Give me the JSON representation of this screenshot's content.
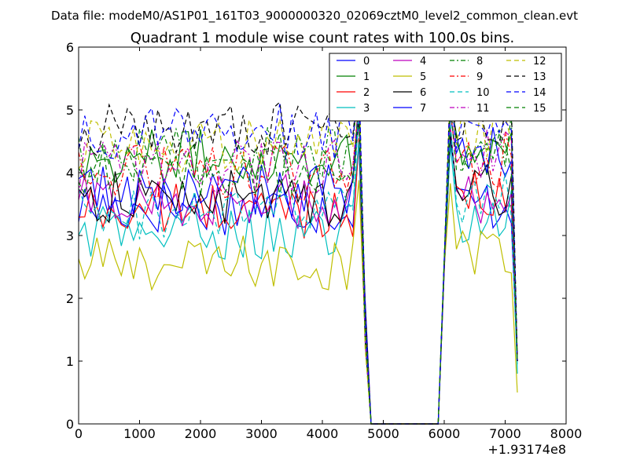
{
  "chart_data": {
    "type": "line",
    "supertitle": "Data file: modeM0/AS1P01_161T03_9000000320_02069cztM0_level2_common_clean.evt",
    "title": "Quadrant 1 module wise count rates with 100.0s bins.",
    "xlabel": "",
    "ylabel": "",
    "x_offset_label": "+1.93174e8",
    "xlim": [
      0,
      8000
    ],
    "ylim": [
      0,
      6
    ],
    "x_ticks": [
      "0",
      "1000",
      "2000",
      "3000",
      "4000",
      "5000",
      "6000",
      "7000",
      "8000"
    ],
    "y_ticks": [
      "0",
      "1",
      "2",
      "3",
      "4",
      "5",
      "6"
    ],
    "grid": false,
    "legend_position": "top-right",
    "bin_width": 100,
    "segments": [
      {
        "start": 0,
        "end": 4600
      },
      {
        "start": 4600,
        "end": 4800,
        "shape": "drop_to_zero"
      },
      {
        "start": 4800,
        "end": 5900,
        "shape": "zero"
      },
      {
        "start": 5900,
        "end": 6100,
        "shape": "rise"
      },
      {
        "start": 6100,
        "end": 7200
      }
    ],
    "series": [
      {
        "name": "0",
        "color": "#0000ff",
        "dash": "solid",
        "base": 3.45,
        "seg2": 3.5,
        "peak": 4.6,
        "end": 1.0
      },
      {
        "name": "1",
        "color": "#008000",
        "dash": "solid",
        "base": 4.25,
        "seg2": 4.4,
        "peak": 5.2,
        "end": 1.0
      },
      {
        "name": "2",
        "color": "#ff0000",
        "dash": "solid",
        "base": 3.4,
        "seg2": 3.6,
        "peak": 4.7,
        "end": 1.0
      },
      {
        "name": "3",
        "color": "#00bfbf",
        "dash": "solid",
        "base": 3.05,
        "seg2": 3.3,
        "peak": 4.5,
        "end": 0.8
      },
      {
        "name": "4",
        "color": "#bf00bf",
        "dash": "solid",
        "base": 3.55,
        "seg2": 3.6,
        "peak": 4.8,
        "end": 1.0
      },
      {
        "name": "5",
        "color": "#bfbf00",
        "dash": "solid",
        "base": 2.55,
        "seg2": 2.7,
        "peak": 3.9,
        "end": 0.5
      },
      {
        "name": "6",
        "color": "#000000",
        "dash": "solid",
        "base": 3.6,
        "seg2": 3.7,
        "peak": 4.7,
        "end": 1.0
      },
      {
        "name": "7",
        "color": "#0000ff",
        "dash": "solid",
        "base": 3.7,
        "seg2": 4.3,
        "peak": 5.0,
        "end": 1.0
      },
      {
        "name": "8",
        "color": "#008000",
        "dash": "dashdot",
        "base": 4.3,
        "seg2": 4.5,
        "peak": 5.3,
        "end": 1.0
      },
      {
        "name": "9",
        "color": "#ff0000",
        "dash": "dashdot",
        "base": 4.0,
        "seg2": 4.2,
        "peak": 5.1,
        "end": 1.0
      },
      {
        "name": "10",
        "color": "#00bfbf",
        "dash": "dashed",
        "base": 3.35,
        "seg2": 3.6,
        "peak": 4.9,
        "end": 0.9
      },
      {
        "name": "11",
        "color": "#bf00bf",
        "dash": "dashdot",
        "base": 4.1,
        "seg2": 4.3,
        "peak": 5.2,
        "end": 1.0
      },
      {
        "name": "12",
        "color": "#bfbf00",
        "dash": "dashed",
        "base": 4.45,
        "seg2": 4.6,
        "peak": 5.5,
        "end": 1.0
      },
      {
        "name": "13",
        "color": "#000000",
        "dash": "dashed",
        "base": 4.7,
        "seg2": 4.7,
        "peak": 5.6,
        "end": 1.0
      },
      {
        "name": "14",
        "color": "#0000ff",
        "dash": "dashed",
        "base": 4.65,
        "seg2": 4.6,
        "peak": 5.5,
        "end": 1.0
      },
      {
        "name": "15",
        "color": "#008000",
        "dash": "dashed",
        "base": 4.05,
        "seg2": 4.3,
        "peak": 5.2,
        "end": 1.0
      }
    ]
  }
}
